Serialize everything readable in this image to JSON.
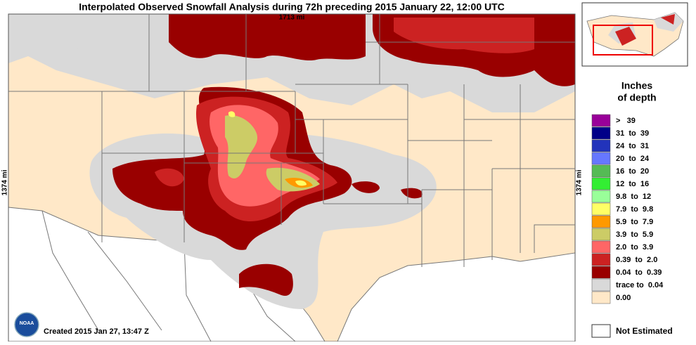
{
  "header": {
    "title": "Interpolated Observed Snowfall Analysis during 72h preceding 2015 January 22, 12:00 UTC",
    "width_label": "1713 mi",
    "height_label_left": "1374 mi",
    "height_label_right": "1374 mi"
  },
  "legend": {
    "title_line1": "Inches",
    "title_line2": "of depth",
    "items": [
      {
        "label": ">   39",
        "color": "#990099"
      },
      {
        "label": "31  to  39",
        "color": "#000088"
      },
      {
        "label": "24  to  31",
        "color": "#2233bb"
      },
      {
        "label": "20  to  24",
        "color": "#6677ff"
      },
      {
        "label": "16  to  20",
        "color": "#55bb55"
      },
      {
        "label": "12  to  16",
        "color": "#33ee33"
      },
      {
        "label": "9.8  to  12",
        "color": "#99ff99"
      },
      {
        "label": "7.9  to  9.8",
        "color": "#ffff66"
      },
      {
        "label": "5.9  to  7.9",
        "color": "#ff9900"
      },
      {
        "label": "3.9  to  5.9",
        "color": "#cccc66"
      },
      {
        "label": "2.0  to  3.9",
        "color": "#ff6666"
      },
      {
        "label": "0.39  to  2.0",
        "color": "#cc2222"
      },
      {
        "label": "0.04  to  0.39",
        "color": "#990000"
      },
      {
        "label": "trace to  0.04",
        "color": "#d9d9d9"
      },
      {
        "label": "0.00",
        "color": "#ffe8c8"
      }
    ],
    "not_estimated": "Not Estimated"
  },
  "footer": {
    "created": "Created 2015 Jan 27, 13:47 Z",
    "logo": "NOAA"
  }
}
